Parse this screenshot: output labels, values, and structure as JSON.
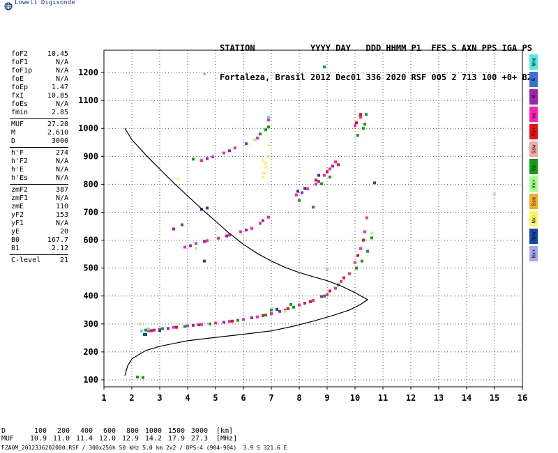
{
  "header": {
    "logo_text": "Lowell Digisonde"
  },
  "station": {
    "line1": "STATION           YYYY DAY   DDD HHMM P1  FFS S AXN PPS IGA PS",
    "line2": "Fortaleza, Brasil 2012 Dec01 336 2020 RSF 005 2 713 100 +0+ B2"
  },
  "params": [
    [
      {
        "label": "foF2",
        "value": "10.45"
      },
      {
        "label": "foF1",
        "value": "N/A"
      },
      {
        "label": "foF1p",
        "value": "N/A"
      },
      {
        "label": "foE",
        "value": "N/A"
      },
      {
        "label": "foEp",
        "value": "1.47"
      },
      {
        "label": "fxI",
        "value": "10.85"
      },
      {
        "label": "foEs",
        "value": "N/A"
      },
      {
        "label": "fmin",
        "value": "2.85"
      }
    ],
    [
      {
        "label": "MUF",
        "value": "27.28"
      },
      {
        "label": "M",
        "value": "2.610"
      },
      {
        "label": "D",
        "value": "3000"
      }
    ],
    [
      {
        "label": "h'F",
        "value": "274"
      },
      {
        "label": "h'F2",
        "value": "N/A"
      },
      {
        "label": "h'E",
        "value": "N/A"
      },
      {
        "label": "h'Es",
        "value": "N/A"
      }
    ],
    [
      {
        "label": "zmF2",
        "value": "387"
      },
      {
        "label": "zmF1",
        "value": "N/A"
      },
      {
        "label": "zmE",
        "value": "110"
      },
      {
        "label": "yF2",
        "value": "153"
      },
      {
        "label": "yF1",
        "value": "N/A"
      },
      {
        "label": "yE",
        "value": "20"
      },
      {
        "label": "B0",
        "value": "167.7"
      },
      {
        "label": "B1",
        "value": "2.12"
      }
    ],
    [
      {
        "label": "C-level",
        "value": "21"
      }
    ]
  ],
  "legend": [
    {
      "label": "Nne",
      "color": "#55e8e0"
    },
    {
      "label": "E",
      "color": "#3a70d8"
    },
    {
      "label": "W",
      "color": "#a020b0"
    },
    {
      "label": "Vo-",
      "color": "#ff20b8"
    },
    {
      "label": "Vo+",
      "color": "#ee1010"
    },
    {
      "label": "Ssw",
      "color": "#f0a8a8"
    },
    {
      "label": "Vx-",
      "color": "#10a010"
    },
    {
      "label": "Vx+",
      "color": "#a0ff90"
    },
    {
      "label": "Sse",
      "color": "#f0b020"
    },
    {
      "label": "Nx-",
      "color": "#f8f860"
    },
    {
      "label": "Nnw",
      "color": "#1448b0"
    },
    {
      "label": "Nx+",
      "color": "#a8a8f0"
    }
  ],
  "muf_table": {
    "row1": {
      "label": "D",
      "values": [
        "100",
        "200",
        "400",
        "600",
        "800",
        "1000",
        "1500",
        "3000"
      ],
      "unit": "[km]"
    },
    "row2": {
      "label": "MUF",
      "values": [
        "10.9",
        "11.0",
        "11.4",
        "12.0",
        "12.9",
        "14.2",
        "17.9",
        "27.3"
      ],
      "unit": "[MHz]"
    }
  },
  "footer": "FZA0M_2012336202000.RSF / 300x256h 50 kHz 5.0 km 2x2 / DPS-4 (904-904)  3.9 S 321.6 E",
  "chart_data": {
    "type": "scatter",
    "title": "",
    "xlabel": "",
    "ylabel": "",
    "xlim": [
      1,
      16
    ],
    "ylim": [
      75,
      1280
    ],
    "x_ticks": [
      1,
      2,
      3,
      4,
      5,
      6,
      7,
      8,
      9,
      10,
      11,
      12,
      13,
      14,
      15,
      16
    ],
    "y_ticks": [
      100,
      200,
      300,
      400,
      500,
      600,
      700,
      800,
      900,
      1000,
      1100,
      1200
    ],
    "grid": true,
    "profile": {
      "name": "",
      "x": [
        1.75,
        2.0,
        2.5,
        3.0,
        3.5,
        4.0,
        4.5,
        5.0,
        5.5,
        6.0,
        6.5,
        7.0,
        7.5,
        8.0,
        8.5,
        9.0,
        9.5,
        10.0,
        10.3,
        10.45,
        10.2,
        9.8,
        9.2,
        8.5,
        7.8,
        7.0,
        6.0,
        5.0,
        4.0,
        3.0,
        2.5,
        2.0,
        1.85,
        1.75
      ],
      "y": [
        1000,
        960,
        905,
        855,
        805,
        758,
        712,
        668,
        624,
        585,
        552,
        525,
        502,
        484,
        469,
        455,
        436,
        412,
        395,
        387,
        370,
        350,
        330,
        310,
        292,
        275,
        263,
        252,
        240,
        220,
        205,
        175,
        150,
        115
      ]
    },
    "series": [
      {
        "name": "Vo-",
        "color": "#ff20b8",
        "points": [
          [
            2.6,
            275
          ],
          [
            3.0,
            281
          ],
          [
            3.5,
            288
          ],
          [
            4.0,
            293
          ],
          [
            4.5,
            298
          ],
          [
            5.0,
            303
          ],
          [
            5.5,
            309
          ],
          [
            6.0,
            316
          ],
          [
            6.5,
            325
          ],
          [
            7.0,
            337
          ],
          [
            7.5,
            350
          ],
          [
            8.0,
            368
          ],
          [
            8.5,
            384
          ],
          [
            9.0,
            405
          ],
          [
            9.3,
            428
          ],
          [
            9.5,
            452
          ],
          [
            9.8,
            480
          ],
          [
            10.0,
            520
          ],
          [
            10.2,
            570
          ],
          [
            10.35,
            630
          ],
          [
            10.42,
            680
          ],
          [
            3.9,
            575
          ],
          [
            4.3,
            588
          ],
          [
            4.7,
            598
          ],
          [
            5.1,
            607
          ],
          [
            5.5,
            618
          ],
          [
            5.9,
            630
          ],
          [
            6.3,
            642
          ],
          [
            6.6,
            660
          ],
          [
            6.9,
            682
          ],
          [
            7.9,
            762
          ],
          [
            8.3,
            784
          ],
          [
            8.6,
            800
          ],
          [
            8.9,
            832
          ],
          [
            9.1,
            855
          ],
          [
            9.3,
            880
          ],
          [
            4.5,
            885
          ],
          [
            4.9,
            898
          ],
          [
            5.3,
            912
          ],
          [
            5.7,
            930
          ],
          [
            6.5,
            965
          ],
          [
            6.9,
            1030
          ],
          [
            10.0,
            1010
          ],
          [
            10.2,
            1040
          ]
        ]
      },
      {
        "name": "W",
        "color": "#a020b0",
        "points": [
          [
            2.8,
            278
          ],
          [
            3.3,
            284
          ],
          [
            4.2,
            295
          ],
          [
            5.3,
            306
          ],
          [
            6.3,
            322
          ],
          [
            7.3,
            345
          ],
          [
            8.2,
            374
          ],
          [
            8.8,
            398
          ],
          [
            3.5,
            640
          ],
          [
            3.8,
            655
          ],
          [
            4.1,
            580
          ],
          [
            4.6,
            595
          ],
          [
            5.4,
            615
          ],
          [
            6.1,
            636
          ],
          [
            6.7,
            670
          ],
          [
            8.1,
            770
          ],
          [
            8.7,
            810
          ],
          [
            9.2,
            865
          ],
          [
            4.7,
            892
          ],
          [
            5.5,
            920
          ],
          [
            6.1,
            945
          ]
        ]
      },
      {
        "name": "Vo+",
        "color": "#ee1010",
        "points": [
          [
            2.7,
            276
          ],
          [
            3.6,
            288
          ],
          [
            4.4,
            297
          ],
          [
            5.6,
            310
          ],
          [
            6.7,
            330
          ],
          [
            7.6,
            355
          ],
          [
            8.4,
            380
          ],
          [
            9.1,
            418
          ],
          [
            9.6,
            465
          ],
          [
            10.1,
            545
          ],
          [
            10.3,
            600
          ],
          [
            8.6,
            815
          ],
          [
            9.0,
            845
          ],
          [
            9.4,
            870
          ],
          [
            10.05,
            1020
          ],
          [
            10.2,
            1050
          ]
        ]
      },
      {
        "name": "Vx-",
        "color": "#10a010",
        "points": [
          [
            2.2,
            110
          ],
          [
            2.4,
            108
          ],
          [
            2.5,
            278
          ],
          [
            3.1,
            283
          ],
          [
            3.9,
            291
          ],
          [
            4.8,
            300
          ],
          [
            5.8,
            313
          ],
          [
            6.8,
            332
          ],
          [
            7.8,
            360
          ],
          [
            8.9,
            400
          ],
          [
            9.4,
            440
          ],
          [
            10.05,
            500
          ],
          [
            10.25,
            525
          ],
          [
            10.45,
            560
          ],
          [
            10.6,
            608
          ],
          [
            7.0,
            350
          ],
          [
            7.7,
            370
          ],
          [
            8.0,
            742
          ],
          [
            8.5,
            718
          ],
          [
            8.8,
            802
          ],
          [
            9.1,
            826
          ],
          [
            10.1,
            975
          ],
          [
            10.3,
            1000
          ],
          [
            10.35,
            1015
          ],
          [
            10.4,
            1050
          ],
          [
            6.6,
            980
          ],
          [
            6.8,
            995
          ],
          [
            6.9,
            1005
          ],
          [
            4.2,
            890
          ],
          [
            8.9,
            1220
          ]
        ]
      },
      {
        "name": "Vx+",
        "color": "#a0ff90",
        "points": [
          [
            2.3,
            300
          ],
          [
            2.6,
            282
          ],
          [
            4.3,
            570
          ],
          [
            6.4,
            960
          ],
          [
            7.5,
            345
          ],
          [
            15.0,
            765
          ],
          [
            10.6,
            625
          ]
        ]
      },
      {
        "name": "Nx-",
        "color": "#f8f860",
        "points": [
          [
            6.7,
            885
          ],
          [
            6.8,
            860
          ],
          [
            6.75,
            840
          ],
          [
            6.85,
            900
          ],
          [
            6.7,
            825
          ],
          [
            6.8,
            875
          ],
          [
            3.65,
            820
          ],
          [
            6.9,
            940
          ]
        ]
      },
      {
        "name": "Nnw",
        "color": "#1448b0",
        "points": [
          [
            2.45,
            262
          ],
          [
            2.5,
            262
          ],
          [
            3.0,
            276
          ],
          [
            4.5,
            710
          ],
          [
            4.7,
            715
          ],
          [
            4.6,
            525
          ],
          [
            7.2,
            352
          ],
          [
            8.7,
            832
          ],
          [
            7.95,
            775
          ],
          [
            8.2,
            785
          ],
          [
            10.7,
            805
          ]
        ]
      },
      {
        "name": "Ssw",
        "color": "#f0a8a8",
        "points": [
          [
            9.0,
            497
          ],
          [
            4.6,
            1195
          ]
        ]
      },
      {
        "name": "Nne",
        "color": "#55e8e0",
        "points": [
          [
            2.35,
            275
          ],
          [
            2.6,
            282
          ],
          [
            6.9,
            1040
          ]
        ]
      }
    ]
  }
}
